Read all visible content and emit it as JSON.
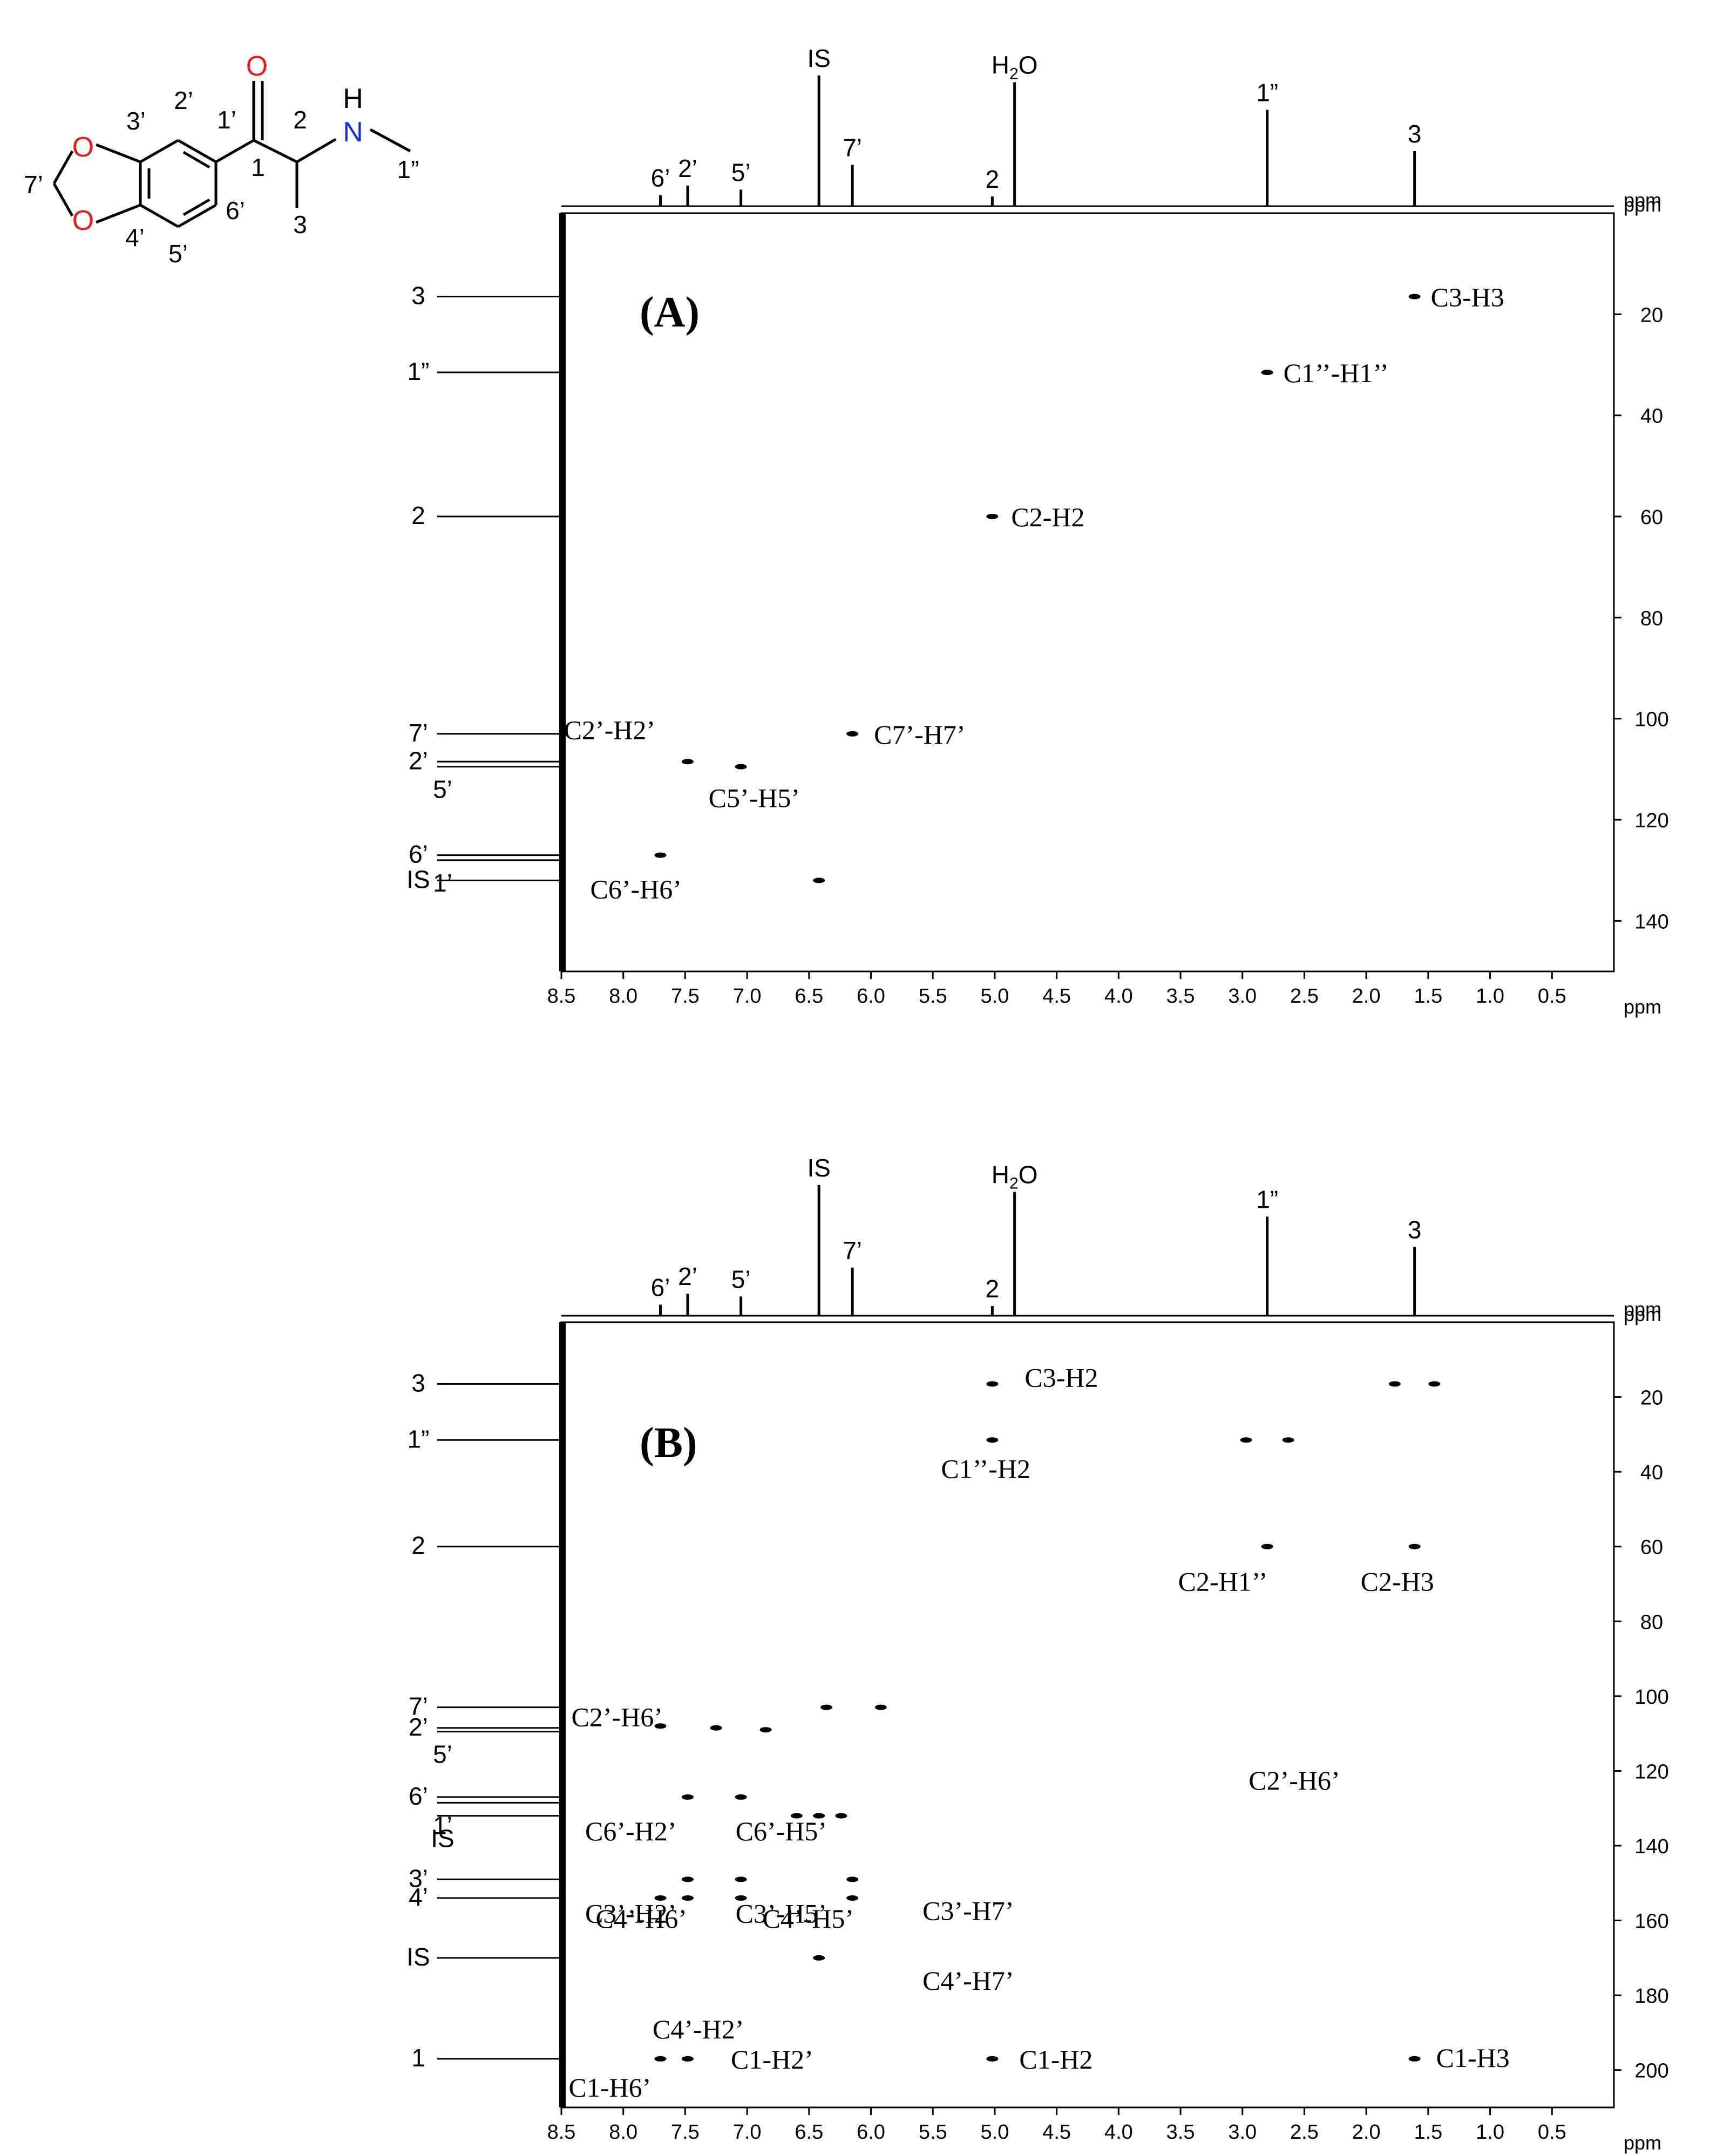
{
  "molecule": {
    "atom_labels": {
      "O_top": "O",
      "O_bottom": "O",
      "N": "N",
      "H": "H",
      "O_carbonyl": "O"
    },
    "position_labels": [
      "7’",
      "3’",
      "2’",
      "1’",
      "1",
      "2",
      "1”",
      "4’",
      "5’",
      "6’",
      "3"
    ],
    "colors": {
      "oxygen": "#e02020",
      "nitrogen": "#1a2fd0",
      "bond": "#000000"
    }
  },
  "chart_data": [
    {
      "type": "heatmap",
      "panel_label": "(A)",
      "x_unit": "ppm",
      "y_unit": "ppm",
      "x_range": [
        8.5,
        0.0
      ],
      "y_range": [
        0,
        150
      ],
      "x_ticks": [
        8.5,
        8.0,
        7.5,
        7.0,
        6.5,
        6.0,
        5.5,
        5.0,
        4.5,
        4.0,
        3.5,
        3.0,
        2.5,
        2.0,
        1.5,
        1.0,
        0.5
      ],
      "y_ticks": [
        20,
        40,
        60,
        80,
        100,
        120,
        140
      ],
      "proton_peaks": [
        {
          "label": "6’",
          "x": 7.7,
          "height": 0.08
        },
        {
          "label": "2’",
          "x": 7.48,
          "height": 0.15
        },
        {
          "label": "5’",
          "x": 7.05,
          "height": 0.12
        },
        {
          "label": "IS",
          "x": 6.42,
          "height": 0.95
        },
        {
          "label": "7’",
          "x": 6.15,
          "height": 0.3
        },
        {
          "label": "2",
          "x": 5.02,
          "height": 0.07
        },
        {
          "label": "H2O",
          "x": 4.84,
          "height": 0.9
        },
        {
          "label": "1”",
          "x": 2.8,
          "height": 0.7
        },
        {
          "label": "3",
          "x": 1.61,
          "height": 0.4
        }
      ],
      "carbon_signals": [
        {
          "label": "3",
          "y": 16.5
        },
        {
          "label": "1”",
          "y": 31.5
        },
        {
          "label": "2",
          "y": 60.0
        },
        {
          "label": "7’",
          "y": 103.0
        },
        {
          "label": "2’",
          "y": 108.5
        },
        {
          "label": "5’",
          "y": 109.5
        },
        {
          "label": "6’",
          "y": 127.0
        },
        {
          "label": "1’",
          "y": 128.0
        },
        {
          "label": "IS",
          "y": 132.0
        }
      ],
      "cross_peaks": [
        {
          "label": "C3-H3",
          "x": 1.61,
          "y": 16.5
        },
        {
          "label": "C1’’-H1’’",
          "x": 2.8,
          "y": 31.5
        },
        {
          "label": "C2-H2",
          "x": 5.02,
          "y": 60.0
        },
        {
          "label": "C7’-H7’",
          "x": 6.15,
          "y": 103.0
        },
        {
          "label": "C2’-H2’",
          "x": 7.48,
          "y": 108.5
        },
        {
          "label": "C5’-H5’",
          "x": 7.05,
          "y": 109.5
        },
        {
          "label": "C6’-H6’",
          "x": 7.7,
          "y": 127.0
        },
        {
          "label": "",
          "x": 6.42,
          "y": 132.0
        }
      ]
    },
    {
      "type": "heatmap",
      "panel_label": "(B)",
      "x_unit": "ppm",
      "y_unit": "ppm",
      "x_range": [
        8.5,
        0.0
      ],
      "y_range": [
        0,
        210
      ],
      "x_ticks": [
        8.5,
        8.0,
        7.5,
        7.0,
        6.5,
        6.0,
        5.5,
        5.0,
        4.5,
        4.0,
        3.5,
        3.0,
        2.5,
        2.0,
        1.5,
        1.0,
        0.5
      ],
      "y_ticks": [
        20,
        40,
        60,
        80,
        100,
        120,
        140,
        160,
        180,
        200
      ],
      "proton_peaks": [
        {
          "label": "6’",
          "x": 7.7,
          "height": 0.08
        },
        {
          "label": "2’",
          "x": 7.48,
          "height": 0.16
        },
        {
          "label": "5’",
          "x": 7.05,
          "height": 0.14
        },
        {
          "label": "IS",
          "x": 6.42,
          "height": 0.95
        },
        {
          "label": "7’",
          "x": 6.15,
          "height": 0.35
        },
        {
          "label": "2",
          "x": 5.02,
          "height": 0.07
        },
        {
          "label": "H2O",
          "x": 4.84,
          "height": 0.9
        },
        {
          "label": "1”",
          "x": 2.8,
          "height": 0.72
        },
        {
          "label": "3",
          "x": 1.61,
          "height": 0.5
        }
      ],
      "carbon_signals": [
        {
          "label": "3",
          "y": 16.5
        },
        {
          "label": "1”",
          "y": 31.5
        },
        {
          "label": "2",
          "y": 60.0
        },
        {
          "label": "7’",
          "y": 103.0
        },
        {
          "label": "2’",
          "y": 108.5
        },
        {
          "label": "5’",
          "y": 109.5
        },
        {
          "label": "6’",
          "y": 127.0
        },
        {
          "label": "1’",
          "y": 128.5
        },
        {
          "label": "IS",
          "y": 132.0
        },
        {
          "label": "3’",
          "y": 149.0
        },
        {
          "label": "4’",
          "y": 154.0
        },
        {
          "label": "IS",
          "y": 170.0
        },
        {
          "label": "1",
          "y": 197.0
        }
      ],
      "cross_peaks": [
        {
          "label": "C3-H2",
          "x": 5.02,
          "y": 16.5
        },
        {
          "label": "",
          "x": 1.77,
          "y": 16.5
        },
        {
          "label": "",
          "x": 1.45,
          "y": 16.5
        },
        {
          "label": "C1’’-H2",
          "x": 5.02,
          "y": 31.5
        },
        {
          "label": "",
          "x": 2.97,
          "y": 31.5
        },
        {
          "label": "",
          "x": 2.63,
          "y": 31.5
        },
        {
          "label": "C2-H1’’",
          "x": 2.8,
          "y": 60.0
        },
        {
          "label": "C2-H3",
          "x": 1.61,
          "y": 60.0
        },
        {
          "label": "",
          "x": 6.36,
          "y": 103.0
        },
        {
          "label": "",
          "x": 5.92,
          "y": 103.0
        },
        {
          "label": "C2’-H6’",
          "x": 7.7,
          "y": 108.0
        },
        {
          "label": "",
          "x": 7.25,
          "y": 108.5
        },
        {
          "label": "",
          "x": 6.85,
          "y": 109.0
        },
        {
          "label": "C6’-H2’",
          "x": 7.48,
          "y": 127.0
        },
        {
          "label": "C6’-H5’",
          "x": 7.05,
          "y": 127.0
        },
        {
          "label": "",
          "x": 6.6,
          "y": 132.0
        },
        {
          "label": "",
          "x": 6.42,
          "y": 132.0
        },
        {
          "label": "",
          "x": 6.24,
          "y": 132.0
        },
        {
          "label": "C3’-H2’",
          "x": 7.48,
          "y": 149.0
        },
        {
          "label": "C3’-H5’",
          "x": 7.05,
          "y": 149.0
        },
        {
          "label": "C3’-H7’",
          "x": 6.15,
          "y": 149.0
        },
        {
          "label": "C4’-H6’",
          "x": 7.7,
          "y": 154.0
        },
        {
          "label": "C4’-H2’",
          "x": 7.48,
          "y": 154.0
        },
        {
          "label": "C4’-H5’",
          "x": 7.05,
          "y": 154.0
        },
        {
          "label": "C4’-H7’",
          "x": 6.15,
          "y": 154.0
        },
        {
          "label": "",
          "x": 6.42,
          "y": 170.0
        },
        {
          "label": "C1-H6’",
          "x": 7.7,
          "y": 197.0
        },
        {
          "label": "C1-H2’",
          "x": 7.48,
          "y": 197.0
        },
        {
          "label": "C1-H2",
          "x": 5.02,
          "y": 197.0
        },
        {
          "label": "C1-H3",
          "x": 1.61,
          "y": 197.0
        }
      ],
      "extra_labels": [
        "C2’-H6’"
      ]
    }
  ]
}
